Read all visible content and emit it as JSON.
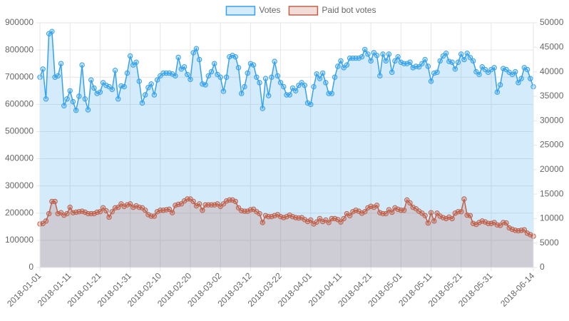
{
  "chart_data": {
    "type": "line",
    "legend": "top",
    "grid": true,
    "x": [
      "2018-01-01",
      "2018-01-02",
      "2018-01-03",
      "2018-01-04",
      "2018-01-05",
      "2018-01-06",
      "2018-01-07",
      "2018-01-08",
      "2018-01-09",
      "2018-01-10",
      "2018-01-11",
      "2018-01-12",
      "2018-01-13",
      "2018-01-14",
      "2018-01-15",
      "2018-01-16",
      "2018-01-17",
      "2018-01-18",
      "2018-01-19",
      "2018-01-20",
      "2018-01-21",
      "2018-01-22",
      "2018-01-23",
      "2018-01-24",
      "2018-01-25",
      "2018-01-26",
      "2018-01-27",
      "2018-01-28",
      "2018-01-29",
      "2018-01-30",
      "2018-01-31",
      "2018-02-01",
      "2018-02-02",
      "2018-02-03",
      "2018-02-04",
      "2018-02-05",
      "2018-02-06",
      "2018-02-07",
      "2018-02-08",
      "2018-02-09",
      "2018-02-10",
      "2018-02-11",
      "2018-02-12",
      "2018-02-13",
      "2018-02-14",
      "2018-02-15",
      "2018-02-16",
      "2018-02-17",
      "2018-02-18",
      "2018-02-19",
      "2018-02-20",
      "2018-02-21",
      "2018-02-22",
      "2018-02-23",
      "2018-02-24",
      "2018-02-25",
      "2018-02-26",
      "2018-02-27",
      "2018-02-28",
      "2018-03-01",
      "2018-03-02",
      "2018-03-03",
      "2018-03-04",
      "2018-03-05",
      "2018-03-06",
      "2018-03-07",
      "2018-03-08",
      "2018-03-09",
      "2018-03-10",
      "2018-03-11",
      "2018-03-12",
      "2018-03-13",
      "2018-03-14",
      "2018-03-15",
      "2018-03-16",
      "2018-03-17",
      "2018-03-18",
      "2018-03-19",
      "2018-03-20",
      "2018-03-21",
      "2018-03-22",
      "2018-03-23",
      "2018-03-24",
      "2018-03-25",
      "2018-03-26",
      "2018-03-27",
      "2018-03-28",
      "2018-03-29",
      "2018-03-30",
      "2018-03-31",
      "2018-04-01",
      "2018-04-02",
      "2018-04-03",
      "2018-04-04",
      "2018-04-05",
      "2018-04-06",
      "2018-04-07",
      "2018-04-08",
      "2018-04-09",
      "2018-04-10",
      "2018-04-11",
      "2018-04-12",
      "2018-04-13",
      "2018-04-14",
      "2018-04-15",
      "2018-04-16",
      "2018-04-17",
      "2018-04-18",
      "2018-04-19",
      "2018-04-20",
      "2018-04-21",
      "2018-04-22",
      "2018-04-23",
      "2018-04-24",
      "2018-04-25",
      "2018-04-26",
      "2018-04-27",
      "2018-04-28",
      "2018-04-29",
      "2018-04-30",
      "2018-05-01",
      "2018-05-02",
      "2018-05-03",
      "2018-05-04",
      "2018-05-05",
      "2018-05-06",
      "2018-05-07",
      "2018-05-08",
      "2018-05-09",
      "2018-05-10",
      "2018-05-11",
      "2018-05-12",
      "2018-05-13",
      "2018-05-14",
      "2018-05-15",
      "2018-05-16",
      "2018-05-17",
      "2018-05-18",
      "2018-05-19",
      "2018-05-20",
      "2018-05-21",
      "2018-05-22",
      "2018-05-23",
      "2018-05-24",
      "2018-05-25",
      "2018-05-26",
      "2018-05-27",
      "2018-05-28",
      "2018-05-29",
      "2018-05-30",
      "2018-05-31",
      "2018-06-01",
      "2018-06-02",
      "2018-06-03",
      "2018-06-04",
      "2018-06-05",
      "2018-06-06",
      "2018-06-07",
      "2018-06-08",
      "2018-06-09",
      "2018-06-10",
      "2018-06-11",
      "2018-06-12",
      "2018-06-13",
      "2018-06-14"
    ],
    "xlim": [
      "2018-01-01",
      "2018-06-14"
    ],
    "xticks": [
      "2018-01-01",
      "2018-01-11",
      "2018-01-21",
      "2018-01-31",
      "2018-02-10",
      "2018-02-20",
      "2018-03-02",
      "2018-03-12",
      "2018-03-22",
      "2018-04-01",
      "2018-04-11",
      "2018-04-21",
      "2018-05-01",
      "2018-05-11",
      "2018-05-21",
      "2018-05-31",
      "2018-06-14"
    ],
    "ylim": [
      0,
      900000
    ],
    "yticks": [
      0,
      100000,
      200000,
      300000,
      400000,
      500000,
      600000,
      700000,
      800000,
      900000
    ],
    "y2lim": [
      0,
      50000
    ],
    "y2ticks": [
      0,
      5000,
      10000,
      15000,
      20000,
      25000,
      30000,
      35000,
      40000,
      45000,
      50000
    ],
    "series": [
      {
        "name": "Votes",
        "color": "#36a2eb",
        "axis": "y",
        "values": [
          700000,
          730000,
          620000,
          860000,
          868000,
          700000,
          705000,
          750000,
          595000,
          620000,
          650000,
          610000,
          578000,
          630000,
          745000,
          620000,
          580000,
          690000,
          660000,
          640000,
          645000,
          680000,
          670000,
          665000,
          655000,
          725000,
          620000,
          668000,
          665000,
          715000,
          778000,
          745000,
          755000,
          685000,
          605000,
          635000,
          662000,
          675000,
          635000,
          690000,
          705000,
          715000,
          715000,
          715000,
          712000,
          705000,
          773000,
          730000,
          738000,
          710000,
          692000,
          790000,
          805000,
          765000,
          675000,
          672000,
          705000,
          720000,
          750000,
          710000,
          700000,
          648000,
          700000,
          775000,
          780000,
          775000,
          735000,
          640000,
          665000,
          715000,
          750000,
          745000,
          700000,
          680000,
          585000,
          695000,
          632000,
          700000,
          758000,
          705000,
          680000,
          665000,
          635000,
          635000,
          660000,
          650000,
          670000,
          680000,
          670000,
          605000,
          600000,
          665000,
          712000,
          695000,
          715000,
          680000,
          640000,
          640000,
          700000,
          740000,
          760000,
          735000,
          745000,
          770000,
          770000,
          770000,
          770000,
          775000,
          802000,
          785000,
          760000,
          790000,
          780000,
          705000,
          785000,
          760000,
          785000,
          718000,
          760000,
          775000,
          755000,
          750000,
          750000,
          755000,
          735000,
          740000,
          738000,
          750000,
          765000,
          740000,
          685000,
          715000,
          718000,
          760000,
          778000,
          788000,
          758000,
          755000,
          730000,
          755000,
          785000,
          765000,
          788000,
          772000,
          760000,
          720000,
          710000,
          738000,
          728000,
          718000,
          728000,
          735000,
          645000,
          672000,
          732000,
          728000,
          718000,
          710000,
          720000,
          680000,
          695000,
          735000,
          728000,
          695000,
          665000
        ]
      },
      {
        "name": "Paid bot votes",
        "color": "#c0604a",
        "axis": "y2",
        "values": [
          8900,
          9000,
          9500,
          11000,
          13500,
          13500,
          11000,
          11200,
          10700,
          11000,
          12300,
          11200,
          11300,
          11400,
          11500,
          11300,
          11000,
          11000,
          11000,
          11300,
          11400,
          12200,
          11600,
          10300,
          11400,
          12200,
          12300,
          13000,
          12500,
          12800,
          13000,
          12300,
          12600,
          12300,
          12200,
          11700,
          10800,
          10500,
          10500,
          11400,
          11700,
          11700,
          11800,
          11900,
          11200,
          12700,
          12900,
          13000,
          13600,
          14000,
          14000,
          13500,
          12600,
          13000,
          11700,
          12800,
          12800,
          12800,
          12800,
          13000,
          12500,
          13000,
          13600,
          13800,
          13800,
          13500,
          12200,
          11600,
          11500,
          11500,
          11800,
          11900,
          11400,
          11000,
          9200,
          10600,
          10400,
          10400,
          10600,
          10800,
          10400,
          10200,
          10400,
          10700,
          10400,
          10200,
          10100,
          10200,
          9800,
          9400,
          9700,
          8900,
          9300,
          10000,
          9400,
          9700,
          9200,
          10000,
          10000,
          9800,
          9300,
          10000,
          11000,
          10600,
          11400,
          11700,
          11500,
          11100,
          11400,
          12200,
          12500,
          12300,
          12700,
          11200,
          11000,
          11000,
          11800,
          11300,
          12200,
          11900,
          11700,
          11700,
          13800,
          13200,
          12300,
          12000,
          11500,
          11100,
          10600,
          9100,
          11200,
          9500,
          11100,
          10500,
          10200,
          10000,
          10300,
          10000,
          11100,
          11400,
          11400,
          14000,
          10700,
          10600,
          9000,
          8800,
          9200,
          9500,
          9300,
          9000,
          9000,
          9200,
          8700,
          8600,
          9200,
          9100,
          8100,
          7800,
          7600,
          7500,
          7600,
          7700,
          7000,
          6700,
          6400
        ]
      }
    ]
  }
}
